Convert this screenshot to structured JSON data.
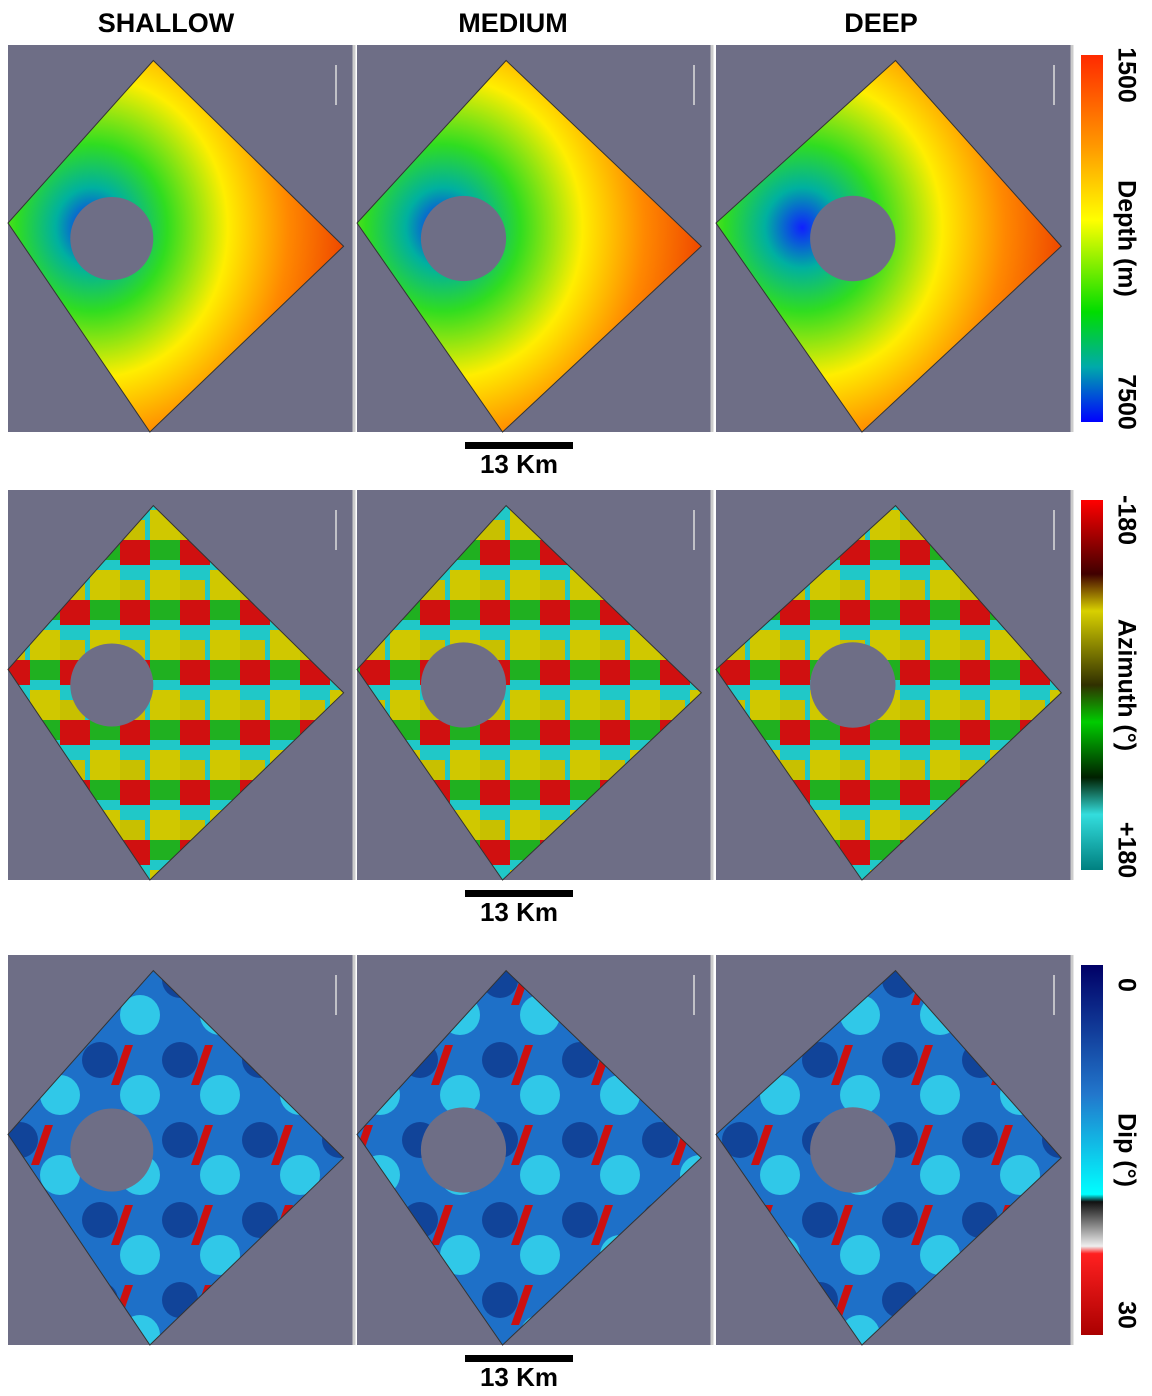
{
  "columns": [
    "SHALLOW",
    "MEDIUM",
    "DEEP"
  ],
  "rows": [
    {
      "colorbar": {
        "top": "1500",
        "title": "Depth (m)",
        "bottom": "7500"
      },
      "scale_bar": "13 Km"
    },
    {
      "colorbar": {
        "top": "-180",
        "title": "Azimuth (°)",
        "bottom": "+180"
      },
      "scale_bar": "13 Km"
    },
    {
      "colorbar": {
        "top": "0",
        "title": "Dip (°)",
        "bottom": "30"
      },
      "scale_bar": "13 Km"
    }
  ]
}
